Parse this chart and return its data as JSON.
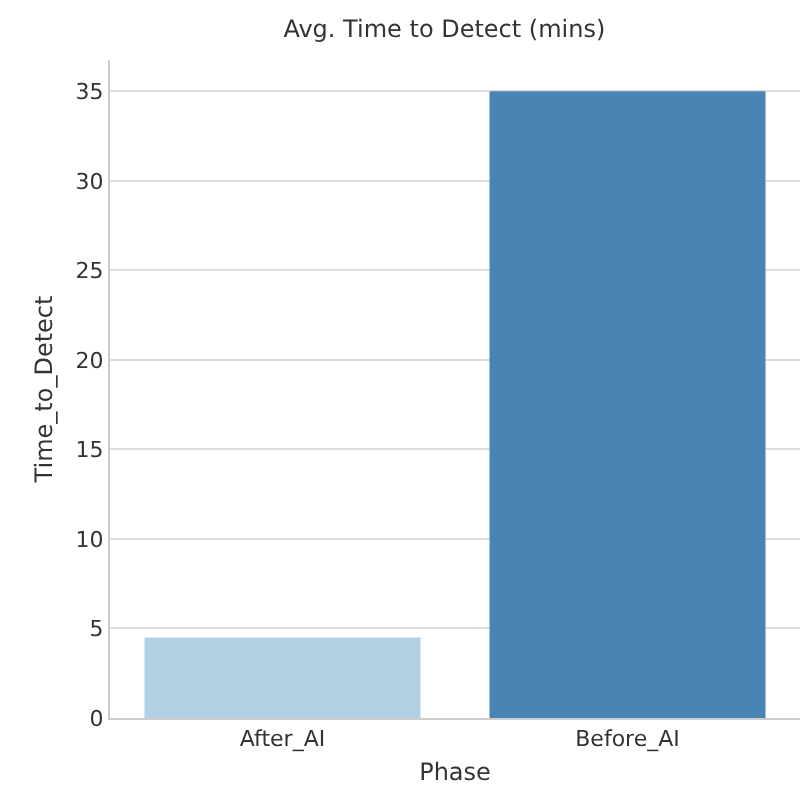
{
  "chart_data": {
    "type": "bar",
    "title": "Avg. Time to Detect (mins)",
    "xlabel": "Phase",
    "ylabel": "Time_to_Detect",
    "categories": [
      "After_AI",
      "Before_AI"
    ],
    "values": [
      4.5,
      35
    ],
    "colors": [
      "#b1d0e4",
      "#4884b4"
    ],
    "ylim": [
      0,
      36.75
    ],
    "yticks": [
      0,
      5,
      10,
      15,
      20,
      25,
      30,
      35
    ],
    "grid": "y"
  }
}
